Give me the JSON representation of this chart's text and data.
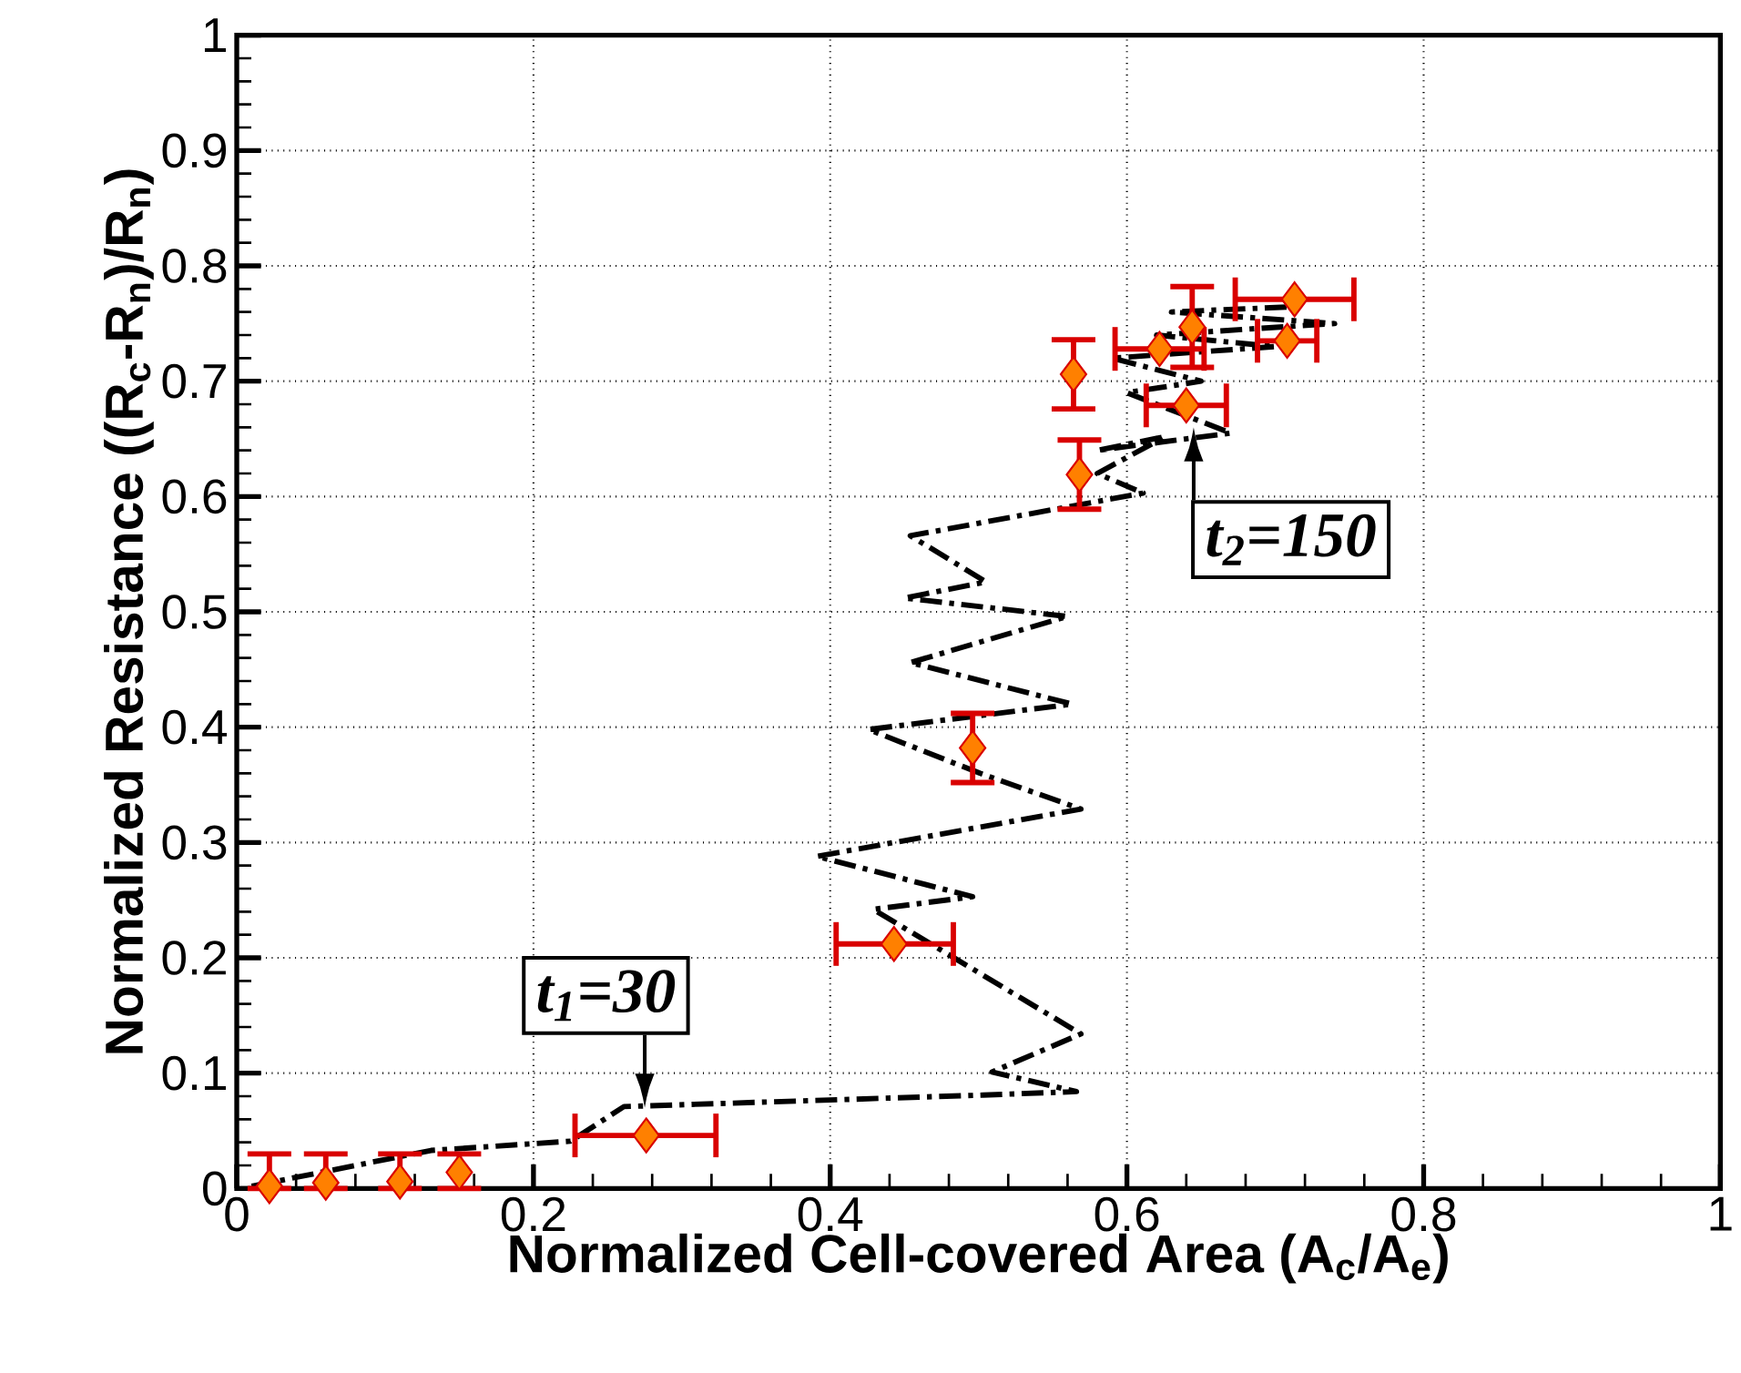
{
  "chart_data": {
    "type": "scatter",
    "xlabel": "Normalized Cell-covered Area (A$_{c}$/A$_{e}$)",
    "ylabel": "Normalized Resistance ((R$_{c}$-R$_{n}$)/R$_{n}$)",
    "xlim": [
      0,
      1
    ],
    "ylim": [
      0,
      1
    ],
    "xticks": [
      0,
      0.2,
      0.4,
      0.6,
      0.8,
      1
    ],
    "yticks": [
      0,
      0.1,
      0.2,
      0.3,
      0.4,
      0.5,
      0.6,
      0.7,
      0.8,
      0.9,
      1
    ],
    "grid": true,
    "series": [
      {
        "type": "line",
        "color": "#000000",
        "line_style": "dashed",
        "marker": "none",
        "x": [
          0.01,
          0.131,
          0.225,
          0.261,
          0.503,
          0.566,
          0.509,
          0.569,
          0.429,
          0.496,
          0.391,
          0.569,
          0.501,
          0.426,
          0.563,
          0.454,
          0.56,
          0.45,
          0.505,
          0.454,
          0.611,
          0.58,
          0.626,
          0.58,
          0.67,
          0.6,
          0.65,
          0.59,
          0.7,
          0.62,
          0.74,
          0.63,
          0.72
        ],
        "values": [
          0.002,
          0.033,
          0.041,
          0.071,
          0.081,
          0.084,
          0.101,
          0.134,
          0.242,
          0.253,
          0.288,
          0.329,
          0.36,
          0.398,
          0.42,
          0.456,
          0.496,
          0.512,
          0.526,
          0.566,
          0.603,
          0.62,
          0.652,
          0.64,
          0.655,
          0.69,
          0.7,
          0.72,
          0.73,
          0.74,
          0.75,
          0.76,
          0.765
        ]
      },
      {
        "color": "#ff8000",
        "marker": "diamond",
        "x": [
          0.022,
          0.06,
          0.11,
          0.15,
          0.276,
          0.443,
          0.496,
          0.568,
          0.564,
          0.622,
          0.644,
          0.64,
          0.708,
          0.713
        ],
        "values": [
          0.002,
          0.005,
          0.006,
          0.014,
          0.046,
          0.212,
          0.382,
          0.619,
          0.706,
          0.728,
          0.747,
          0.679,
          0.735,
          0.771
        ],
        "errors": [
          [
            0,
            0.03
          ],
          [
            0,
            0.03
          ],
          [
            0,
            0.03
          ],
          [
            0,
            0.03
          ],
          null,
          null,
          0.03,
          0.03,
          0.03,
          null,
          0.035,
          null,
          null,
          null
        ],
        "xerrors": [
          null,
          null,
          null,
          null,
          [
            0.228,
            0.323
          ],
          [
            0.404,
            0.483
          ],
          null,
          null,
          null,
          0.03,
          null,
          0.027,
          0.02,
          0.04
        ]
      }
    ],
    "annotations": [
      {
        "text": "t$_{1}$=30",
        "x": 0.275,
        "y": 0.07
      },
      {
        "text": "t$_{2}$=150",
        "x": 0.645,
        "y": 0.66
      }
    ]
  }
}
